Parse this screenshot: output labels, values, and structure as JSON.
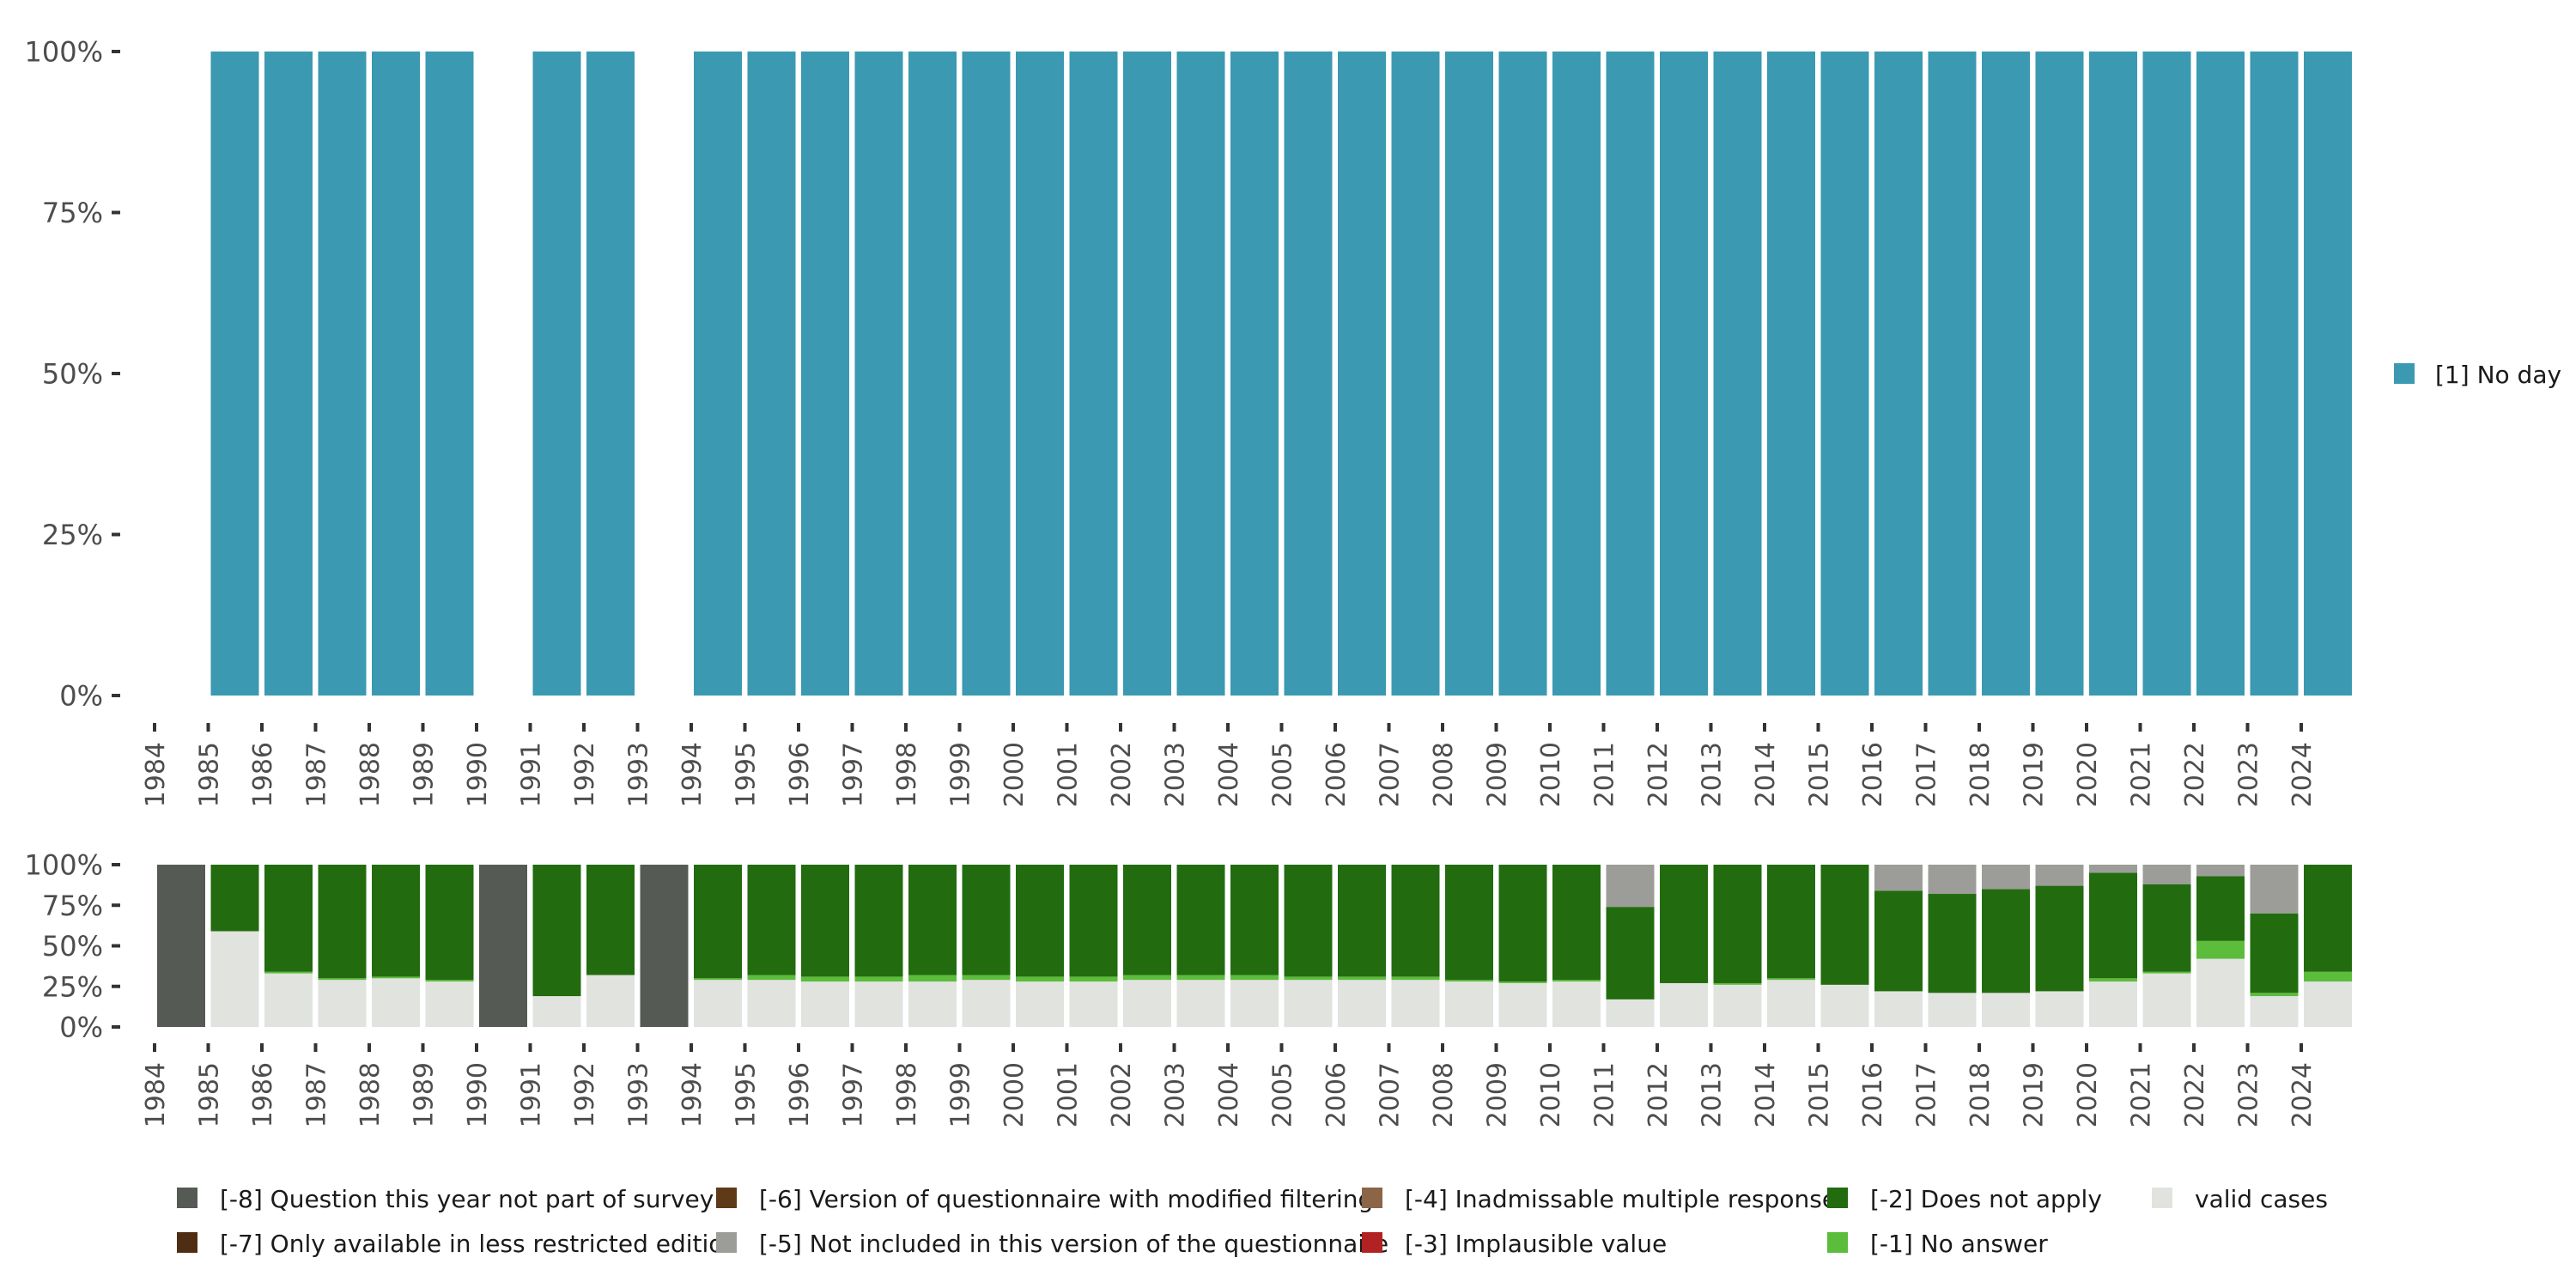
{
  "chart_data": [
    {
      "type": "bar",
      "stacked": true,
      "title": "",
      "xlabel": "",
      "ylabel": "",
      "ylim": [
        0,
        100
      ],
      "y_ticks": [
        "0%",
        "25%",
        "50%",
        "75%",
        "100%"
      ],
      "categories": [
        "1984",
        "1985",
        "1986",
        "1987",
        "1988",
        "1989",
        "1990",
        "1991",
        "1992",
        "1993",
        "1994",
        "1995",
        "1996",
        "1997",
        "1998",
        "1999",
        "2000",
        "2001",
        "2002",
        "2003",
        "2004",
        "2005",
        "2006",
        "2007",
        "2008",
        "2009",
        "2010",
        "2011",
        "2012",
        "2013",
        "2014",
        "2015",
        "2016",
        "2017",
        "2018",
        "2019",
        "2020",
        "2021",
        "2022",
        "2023",
        "2024"
      ],
      "series": [
        {
          "name": "[1] No day",
          "color": "#3b99b1",
          "values": [
            null,
            100,
            100,
            100,
            100,
            100,
            null,
            100,
            100,
            null,
            100,
            100,
            100,
            100,
            100,
            100,
            100,
            100,
            100,
            100,
            100,
            100,
            100,
            100,
            100,
            100,
            100,
            100,
            100,
            100,
            100,
            100,
            100,
            100,
            100,
            100,
            100,
            100,
            100,
            100,
            100
          ]
        }
      ],
      "legend": {
        "position": "right",
        "entries": [
          "[1] No day"
        ]
      }
    },
    {
      "type": "bar",
      "stacked": true,
      "title": "",
      "xlabel": "",
      "ylabel": "",
      "ylim": [
        0,
        100
      ],
      "y_ticks": [
        "0%",
        "25%",
        "50%",
        "75%",
        "100%"
      ],
      "categories": [
        "1984",
        "1985",
        "1986",
        "1987",
        "1988",
        "1989",
        "1990",
        "1991",
        "1992",
        "1993",
        "1994",
        "1995",
        "1996",
        "1997",
        "1998",
        "1999",
        "2000",
        "2001",
        "2002",
        "2003",
        "2004",
        "2005",
        "2006",
        "2007",
        "2008",
        "2009",
        "2010",
        "2011",
        "2012",
        "2013",
        "2014",
        "2015",
        "2016",
        "2017",
        "2018",
        "2019",
        "2020",
        "2021",
        "2022",
        "2023",
        "2024"
      ],
      "series": [
        {
          "name": "valid cases",
          "color": "#e1e3df",
          "values": [
            0,
            59,
            33,
            29,
            30,
            28,
            0,
            19,
            32,
            0,
            29,
            29,
            28,
            28,
            28,
            29,
            28,
            28,
            29,
            29,
            29,
            29,
            29,
            29,
            28,
            27,
            28,
            17,
            27,
            26,
            29,
            26,
            22,
            21,
            21,
            22,
            28,
            33,
            42,
            19,
            28
          ]
        },
        {
          "name": "[-1] No answer",
          "color": "#5cbc3c",
          "values": [
            0,
            0,
            1,
            1,
            1,
            1,
            0,
            0,
            0,
            0,
            1,
            3,
            3,
            3,
            4,
            3,
            3,
            3,
            3,
            3,
            3,
            2,
            2,
            2,
            1,
            1,
            1,
            0,
            0,
            1,
            1,
            0,
            0,
            0,
            0,
            0,
            2,
            1,
            11,
            2,
            6
          ]
        },
        {
          "name": "[-2] Does not apply",
          "color": "#226c0f",
          "values": [
            0,
            41,
            66,
            70,
            69,
            71,
            0,
            81,
            68,
            0,
            70,
            68,
            69,
            69,
            68,
            68,
            69,
            69,
            68,
            68,
            68,
            69,
            69,
            69,
            71,
            72,
            71,
            57,
            73,
            73,
            70,
            74,
            62,
            61,
            64,
            65,
            65,
            54,
            40,
            49,
            66
          ]
        },
        {
          "name": "[-3] Implausible value",
          "color": "#b22222",
          "values": [
            0,
            0,
            0,
            0,
            0,
            0,
            0,
            0,
            0,
            0,
            0,
            0,
            0,
            0,
            0,
            0,
            0,
            0,
            0,
            0,
            0,
            0,
            0,
            0,
            0,
            0,
            0,
            0,
            0,
            0,
            0,
            0,
            0,
            0,
            0,
            0,
            0,
            0,
            0,
            0,
            0
          ]
        },
        {
          "name": "[-4] Inadmissable multiple response",
          "color": "#8c6446",
          "values": [
            0,
            0,
            0,
            0,
            0,
            0,
            0,
            0,
            0,
            0,
            0,
            0,
            0,
            0,
            0,
            0,
            0,
            0,
            0,
            0,
            0,
            0,
            0,
            0,
            0,
            0,
            0,
            0,
            0,
            0,
            0,
            0,
            0,
            0,
            0,
            0,
            0,
            0,
            0,
            0,
            0
          ]
        },
        {
          "name": "[-5] Not included in this version of the questionnaire",
          "color": "#9c9d98",
          "values": [
            0,
            0,
            0,
            0,
            0,
            0,
            0,
            0,
            0,
            0,
            0,
            0,
            0,
            0,
            0,
            0,
            0,
            0,
            0,
            0,
            0,
            0,
            0,
            0,
            0,
            0,
            0,
            26,
            0,
            0,
            0,
            0,
            16,
            18,
            15,
            13,
            5,
            12,
            7,
            30,
            0
          ]
        },
        {
          "name": "[-6] Version of questionnaire with modified filtering",
          "color": "#5e3a18",
          "values": [
            0,
            0,
            0,
            0,
            0,
            0,
            0,
            0,
            0,
            0,
            0,
            0,
            0,
            0,
            0,
            0,
            0,
            0,
            0,
            0,
            0,
            0,
            0,
            0,
            0,
            0,
            0,
            0,
            0,
            0,
            0,
            0,
            0,
            0,
            0,
            0,
            0,
            0,
            0,
            0,
            0
          ]
        },
        {
          "name": "[-7] Only available in less restricted edition",
          "color": "#4f2d12",
          "values": [
            0,
            0,
            0,
            0,
            0,
            0,
            0,
            0,
            0,
            0,
            0,
            0,
            0,
            0,
            0,
            0,
            0,
            0,
            0,
            0,
            0,
            0,
            0,
            0,
            0,
            0,
            0,
            0,
            0,
            0,
            0,
            0,
            0,
            0,
            0,
            0,
            0,
            0,
            0,
            0,
            0
          ]
        },
        {
          "name": "[-8] Question this year not part of survey",
          "color": "#555a54",
          "values": [
            100,
            0,
            0,
            0,
            0,
            0,
            100,
            0,
            0,
            100,
            0,
            0,
            0,
            0,
            0,
            0,
            0,
            0,
            0,
            0,
            0,
            0,
            0,
            0,
            0,
            0,
            0,
            0,
            0,
            0,
            0,
            0,
            0,
            0,
            0,
            0,
            0,
            0,
            0,
            0,
            0
          ]
        }
      ],
      "legend": {
        "position": "bottom",
        "entries": [
          {
            "label": "[-8] Question this year not part of survey",
            "color": "#555a54"
          },
          {
            "label": "[-7] Only available in less restricted edition",
            "color": "#4f2d12"
          },
          {
            "label": "[-6] Version of questionnaire with modified filtering",
            "color": "#5e3a18"
          },
          {
            "label": "[-5] Not included in this version of the questionnaire",
            "color": "#9c9d98"
          },
          {
            "label": "[-4] Inadmissable multiple response",
            "color": "#8c6446"
          },
          {
            "label": "[-3] Implausible value",
            "color": "#b22222"
          },
          {
            "label": "[-2] Does not apply",
            "color": "#226c0f"
          },
          {
            "label": "[-1] No answer",
            "color": "#5cbc3c"
          },
          {
            "label": "valid cases",
            "color": "#e1e3df"
          }
        ]
      }
    }
  ]
}
